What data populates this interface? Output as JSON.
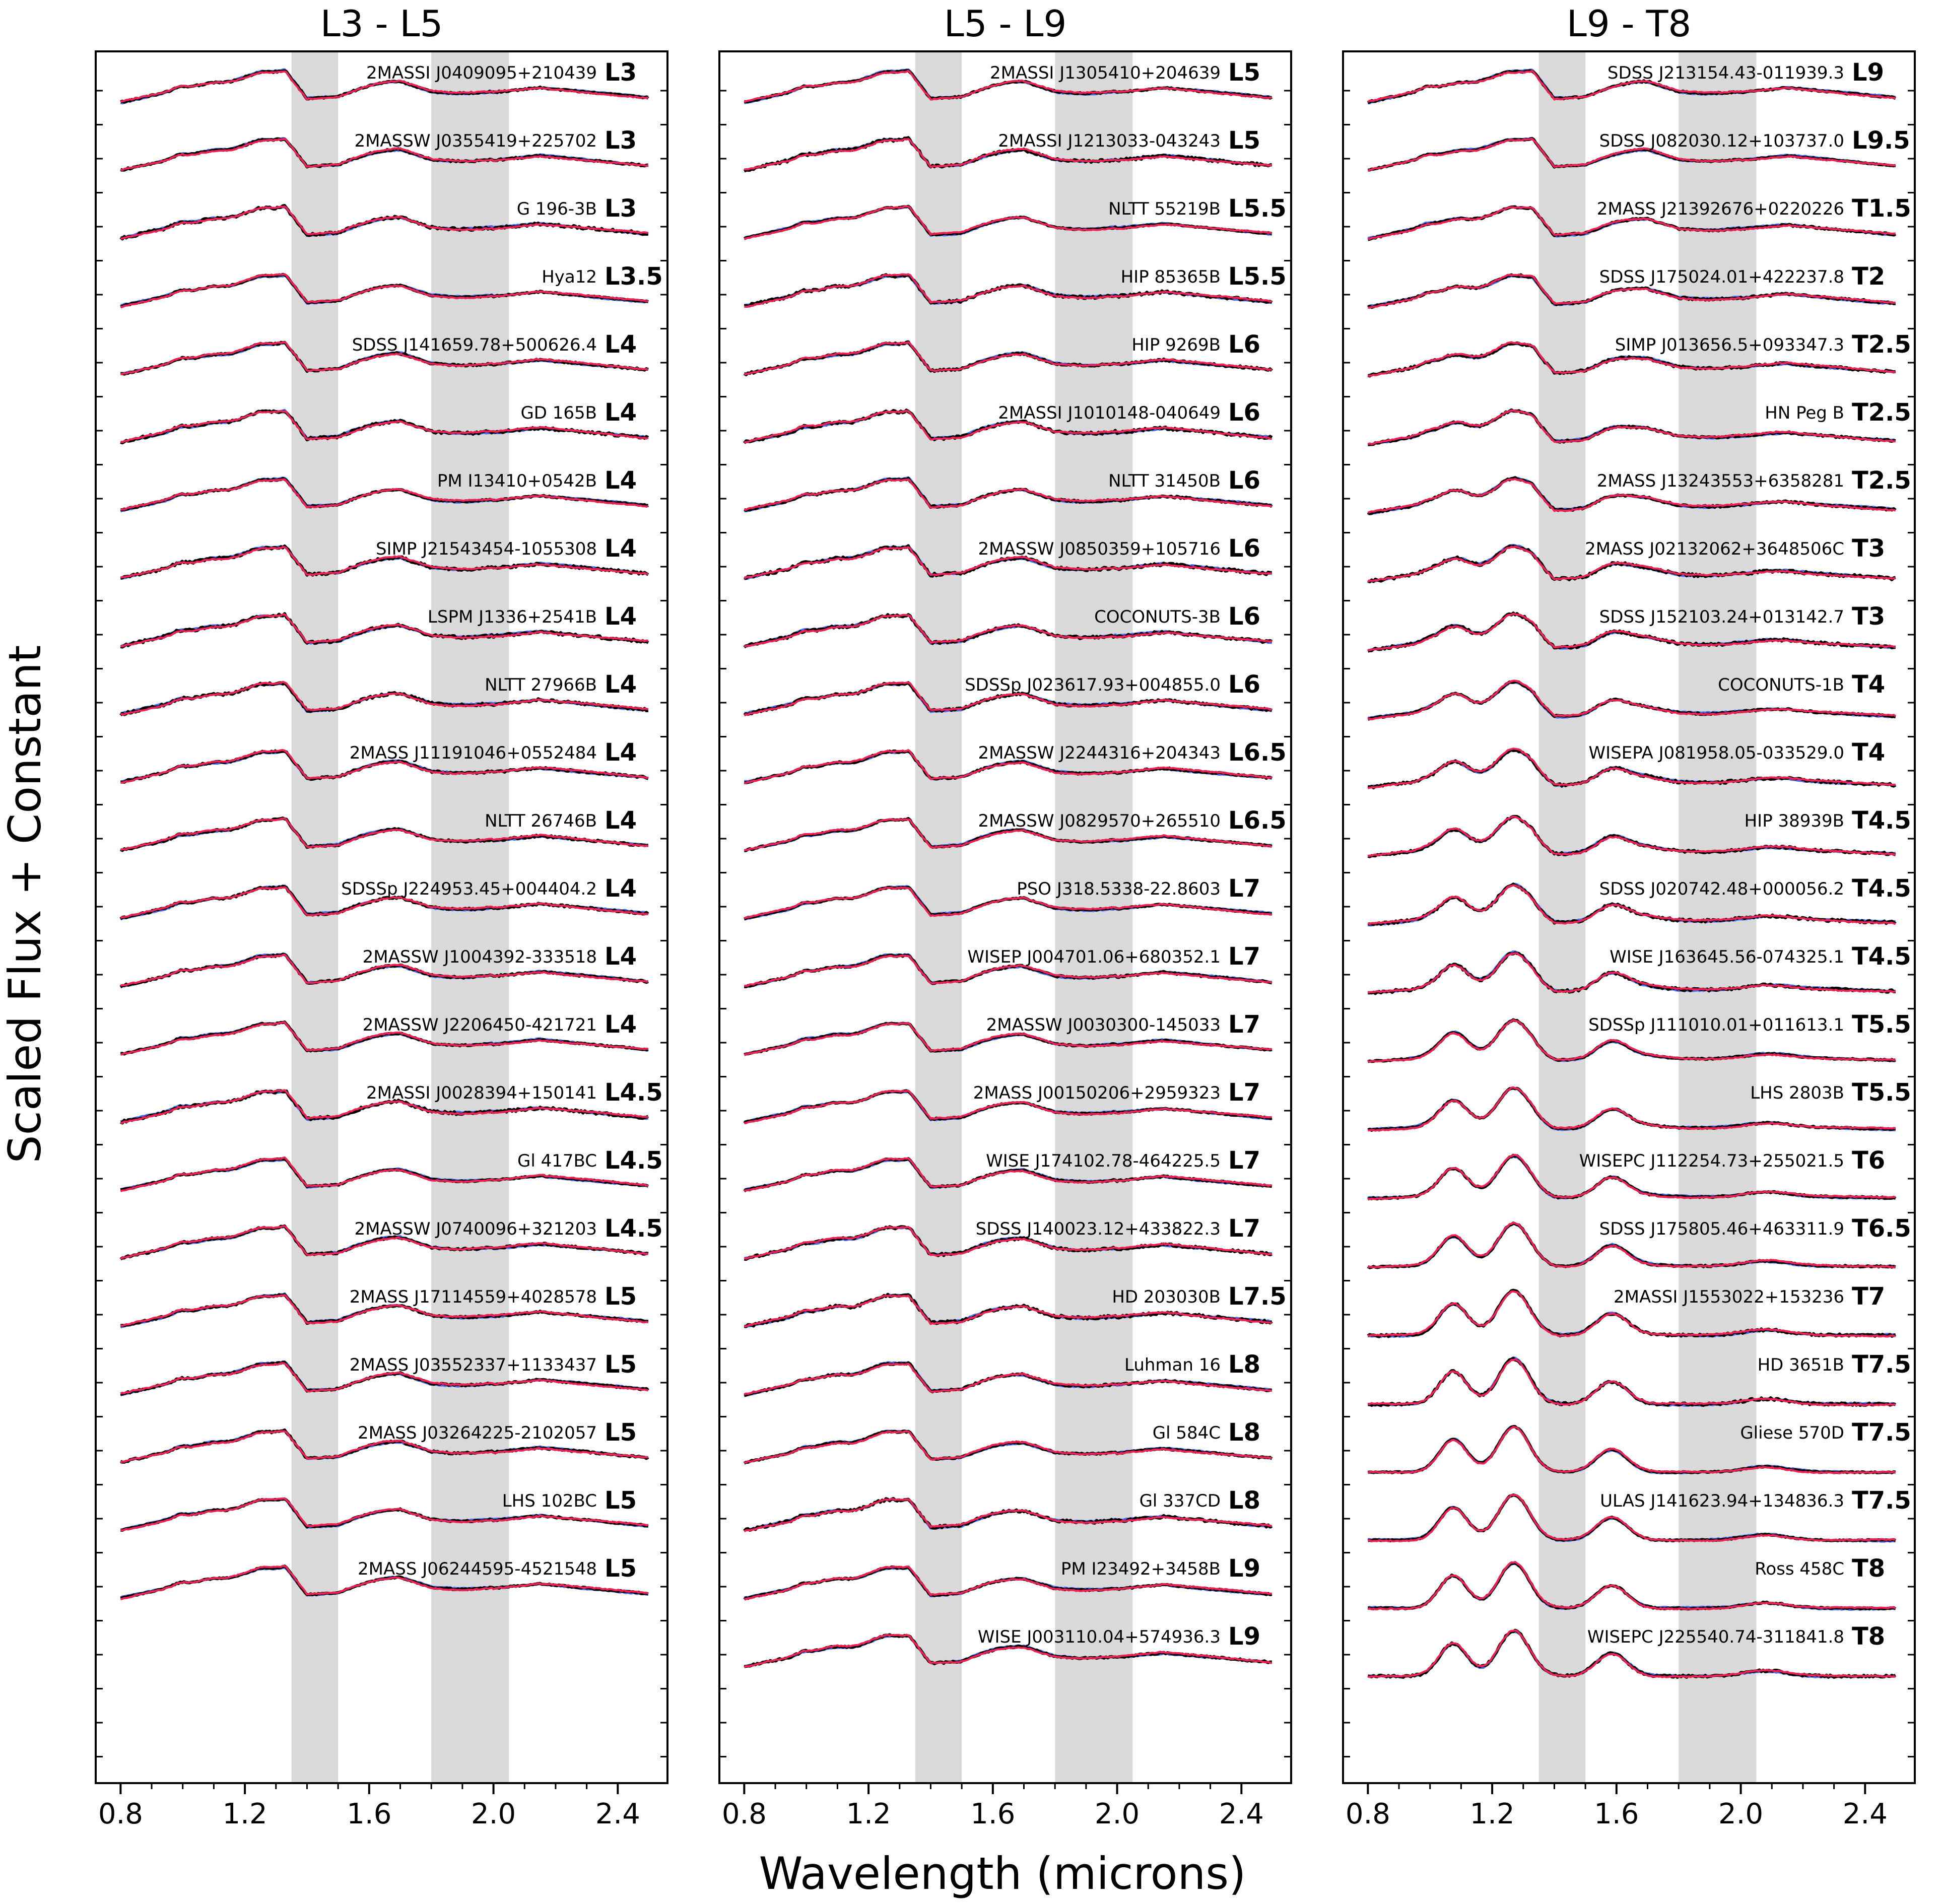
{
  "chart_data": {
    "type": "line",
    "ylabel": "Scaled Flux + Constant",
    "xlabel": "Wavelength (microns)",
    "xlim": [
      0.72,
      2.56
    ],
    "xticks": [
      "0.8",
      "1.2",
      "1.6",
      "2.0",
      "2.4"
    ],
    "xtick_values": [
      0.8,
      1.2,
      1.6,
      2.0,
      2.4
    ],
    "shaded_bands_microns": [
      [
        1.35,
        1.5
      ],
      [
        1.8,
        2.05
      ]
    ],
    "series_colors": {
      "data": "#000000",
      "model_a": "#4a6ef0",
      "model_b": "#ee2255",
      "band": "#d9d9d9"
    },
    "panels": [
      {
        "title": "L3 - L5",
        "objects": [
          {
            "name": "2MASSI J0409095+210439",
            "spt": "L3"
          },
          {
            "name": "2MASSW J0355419+225702",
            "spt": "L3"
          },
          {
            "name": "G 196-3B",
            "spt": "L3"
          },
          {
            "name": "Hya12",
            "spt": "L3.5"
          },
          {
            "name": "SDSS J141659.78+500626.4",
            "spt": "L4"
          },
          {
            "name": "GD 165B",
            "spt": "L4"
          },
          {
            "name": "PM I13410+0542B",
            "spt": "L4"
          },
          {
            "name": "SIMP J21543454-1055308",
            "spt": "L4"
          },
          {
            "name": "LSPM J1336+2541B",
            "spt": "L4"
          },
          {
            "name": "NLTT 27966B",
            "spt": "L4"
          },
          {
            "name": "2MASS J11191046+0552484",
            "spt": "L4"
          },
          {
            "name": "NLTT 26746B",
            "spt": "L4"
          },
          {
            "name": "SDSSp J224953.45+004404.2",
            "spt": "L4"
          },
          {
            "name": "2MASSW J1004392-333518",
            "spt": "L4"
          },
          {
            "name": "2MASSW J2206450-421721",
            "spt": "L4"
          },
          {
            "name": "2MASSI J0028394+150141",
            "spt": "L4.5"
          },
          {
            "name": "Gl 417BC",
            "spt": "L4.5"
          },
          {
            "name": "2MASSW J0740096+321203",
            "spt": "L4.5"
          },
          {
            "name": "2MASS J17114559+4028578",
            "spt": "L5"
          },
          {
            "name": "2MASS J03552337+1133437",
            "spt": "L5"
          },
          {
            "name": "2MASS J03264225-2102057",
            "spt": "L5"
          },
          {
            "name": "LHS 102BC",
            "spt": "L5"
          },
          {
            "name": "2MASS J06244595-4521548",
            "spt": "L5"
          }
        ]
      },
      {
        "title": "L5 - L9",
        "objects": [
          {
            "name": "2MASSI J1305410+204639",
            "spt": "L5"
          },
          {
            "name": "2MASSI J1213033-043243",
            "spt": "L5"
          },
          {
            "name": "NLTT 55219B",
            "spt": "L5.5"
          },
          {
            "name": "HIP 85365B",
            "spt": "L5.5"
          },
          {
            "name": "HIP 9269B",
            "spt": "L6"
          },
          {
            "name": "2MASSI J1010148-040649",
            "spt": "L6"
          },
          {
            "name": "NLTT 31450B",
            "spt": "L6"
          },
          {
            "name": "2MASSW J0850359+105716",
            "spt": "L6"
          },
          {
            "name": "COCONUTS-3B",
            "spt": "L6"
          },
          {
            "name": "SDSSp J023617.93+004855.0",
            "spt": "L6"
          },
          {
            "name": "2MASSW J2244316+204343",
            "spt": "L6.5"
          },
          {
            "name": "2MASSW J0829570+265510",
            "spt": "L6.5"
          },
          {
            "name": "PSO J318.5338-22.8603",
            "spt": "L7"
          },
          {
            "name": "WISEP J004701.06+680352.1",
            "spt": "L7"
          },
          {
            "name": "2MASSW J0030300-145033",
            "spt": "L7"
          },
          {
            "name": "2MASS J00150206+2959323",
            "spt": "L7"
          },
          {
            "name": "WISE J174102.78-464225.5",
            "spt": "L7"
          },
          {
            "name": "SDSS J140023.12+433822.3",
            "spt": "L7"
          },
          {
            "name": "HD 203030B",
            "spt": "L7.5"
          },
          {
            "name": "Luhman 16",
            "spt": "L8"
          },
          {
            "name": "Gl 584C",
            "spt": "L8"
          },
          {
            "name": "Gl 337CD",
            "spt": "L8"
          },
          {
            "name": "PM I23492+3458B",
            "spt": "L9"
          },
          {
            "name": "WISE J003110.04+574936.3",
            "spt": "L9"
          }
        ]
      },
      {
        "title": "L9 - T8",
        "objects": [
          {
            "name": "SDSS J213154.43-011939.3",
            "spt": "L9"
          },
          {
            "name": "SDSS J082030.12+103737.0",
            "spt": "L9.5"
          },
          {
            "name": "2MASS J21392676+0220226",
            "spt": "T1.5"
          },
          {
            "name": "SDSS J175024.01+422237.8",
            "spt": "T2"
          },
          {
            "name": "SIMP J013656.5+093347.3",
            "spt": "T2.5"
          },
          {
            "name": "HN Peg B",
            "spt": "T2.5"
          },
          {
            "name": "2MASS J13243553+6358281",
            "spt": "T2.5"
          },
          {
            "name": "2MASS J02132062+3648506C",
            "spt": "T3"
          },
          {
            "name": "SDSS J152103.24+013142.7",
            "spt": "T3"
          },
          {
            "name": "COCONUTS-1B",
            "spt": "T4"
          },
          {
            "name": "WISEPA J081958.05-033529.0",
            "spt": "T4"
          },
          {
            "name": "HIP 38939B",
            "spt": "T4.5"
          },
          {
            "name": "SDSS J020742.48+000056.2",
            "spt": "T4.5"
          },
          {
            "name": "WISE J163645.56-074325.1",
            "spt": "T4.5"
          },
          {
            "name": "SDSSp J111010.01+011613.1",
            "spt": "T5.5"
          },
          {
            "name": "LHS 2803B",
            "spt": "T5.5"
          },
          {
            "name": "WISEPC J112254.73+255021.5",
            "spt": "T6"
          },
          {
            "name": "SDSS J175805.46+463311.9",
            "spt": "T6.5"
          },
          {
            "name": "2MASSI J1553022+153236",
            "spt": "T7"
          },
          {
            "name": "HD 3651B",
            "spt": "T7.5"
          },
          {
            "name": "Gliese 570D",
            "spt": "T7.5"
          },
          {
            "name": "ULAS J141623.94+134836.3",
            "spt": "T7.5"
          },
          {
            "name": "Ross 458C",
            "spt": "T8"
          },
          {
            "name": "WISEPC J225540.74-311841.8",
            "spt": "T8"
          }
        ]
      }
    ]
  }
}
